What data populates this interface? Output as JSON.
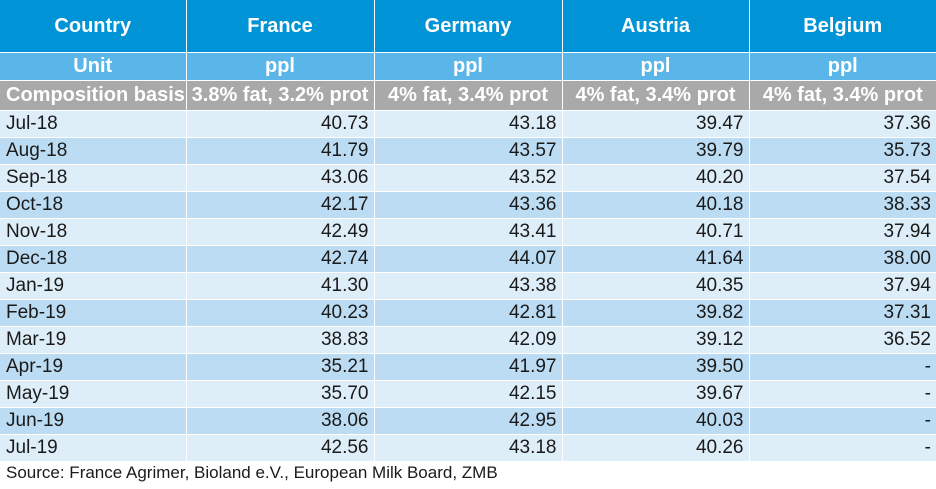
{
  "table": {
    "country_label": "Country",
    "unit_label": "Unit",
    "basis_label": "Composition basis",
    "countries": [
      "France",
      "Germany",
      "Austria",
      "Belgium"
    ],
    "units": [
      "ppl",
      "ppl",
      "ppl",
      "ppl"
    ],
    "bases": [
      "3.8% fat, 3.2% prot",
      "4% fat, 3.4% prot",
      "4% fat, 3.4% prot",
      "4% fat, 3.4% prot"
    ],
    "rows": [
      {
        "month": "Jul-18",
        "values": [
          "40.73",
          "43.18",
          "39.47",
          "37.36"
        ]
      },
      {
        "month": "Aug-18",
        "values": [
          "41.79",
          "43.57",
          "39.79",
          "35.73"
        ]
      },
      {
        "month": "Sep-18",
        "values": [
          "43.06",
          "43.52",
          "40.20",
          "37.54"
        ]
      },
      {
        "month": "Oct-18",
        "values": [
          "42.17",
          "43.36",
          "40.18",
          "38.33"
        ]
      },
      {
        "month": "Nov-18",
        "values": [
          "42.49",
          "43.41",
          "40.71",
          "37.94"
        ]
      },
      {
        "month": "Dec-18",
        "values": [
          "42.74",
          "44.07",
          "41.64",
          "38.00"
        ]
      },
      {
        "month": "Jan-19",
        "values": [
          "41.30",
          "43.38",
          "40.35",
          "37.94"
        ]
      },
      {
        "month": "Feb-19",
        "values": [
          "40.23",
          "42.81",
          "39.82",
          "37.31"
        ]
      },
      {
        "month": "Mar-19",
        "values": [
          "38.83",
          "42.09",
          "39.12",
          "36.52"
        ]
      },
      {
        "month": "Apr-19",
        "values": [
          "35.21",
          "41.97",
          "39.50",
          "-"
        ]
      },
      {
        "month": "May-19",
        "values": [
          "35.70",
          "42.15",
          "39.67",
          "-"
        ]
      },
      {
        "month": "Jun-19",
        "values": [
          "38.06",
          "42.95",
          "40.03",
          "-"
        ]
      },
      {
        "month": "Jul-19",
        "values": [
          "42.56",
          "43.18",
          "40.26",
          "-"
        ]
      }
    ]
  },
  "source": "Source: France Agrimer, Bioland e.V., European Milk Board, ZMB",
  "colors": {
    "header_country_bg": "#0093d6",
    "header_unit_bg": "#5ab6e8",
    "header_basis_bg": "#a9a9a9",
    "row_light_bg": "#deeef9",
    "row_dark_bg": "#bcdcf3"
  }
}
